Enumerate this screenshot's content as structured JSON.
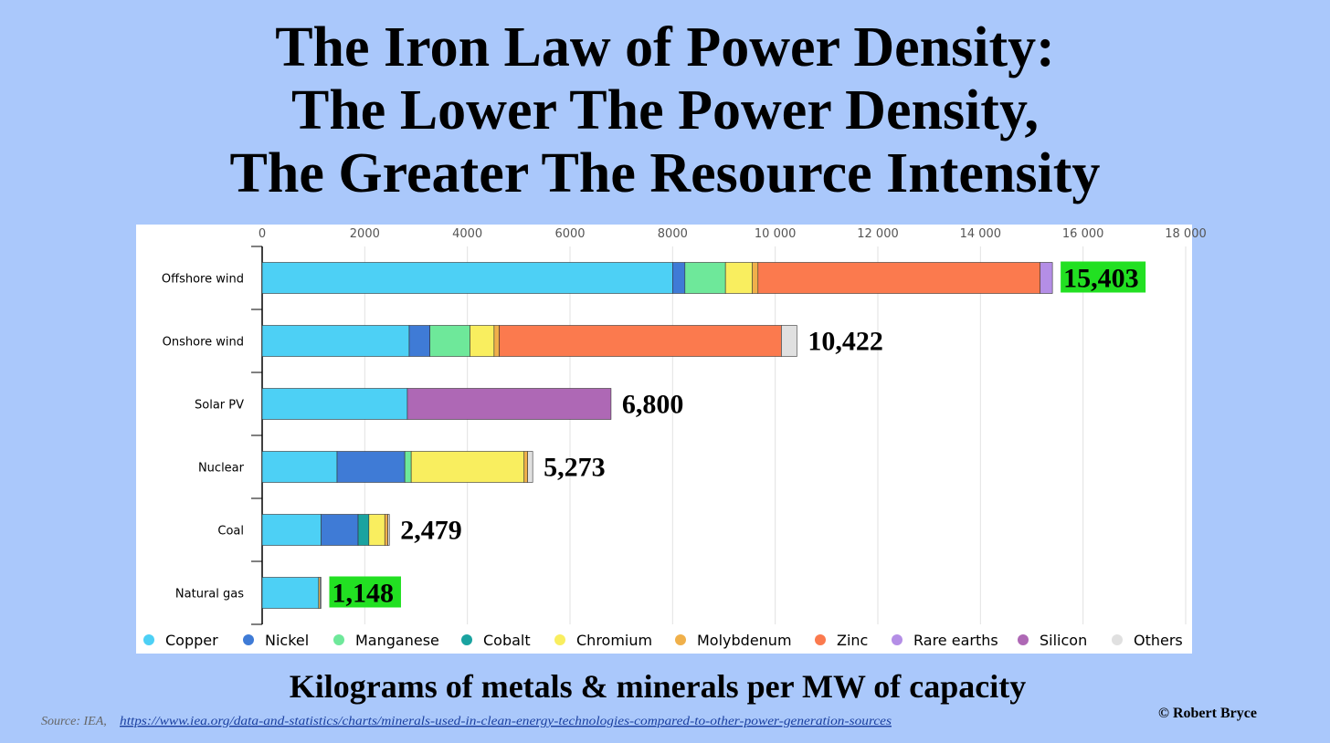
{
  "chart_data": {
    "type": "stacked-bar-horizontal",
    "title": [
      "The Iron Law of Power Density:",
      "The Lower The Power Density,",
      "The Greater The Resource Intensity"
    ],
    "x_label": "Kilograms of metals & minerals per MW of capacity",
    "source": "Source: IEA,",
    "source_link": "https://www.iea.org/data-and-statistics/charts/minerals-used-in-clean-energy-technologies-compared-to-other-power-generation-sources",
    "credit": "© Robert Bryce",
    "categories": [
      "Offshore wind",
      "Onshore wind",
      "Solar PV",
      "Nuclear",
      "Coal",
      "Natural gas"
    ],
    "series": [
      {
        "name": "Copper",
        "color": "#4dd0f5",
        "values": [
          8000,
          2866,
          2830,
          1460,
          1150,
          1100
        ]
      },
      {
        "name": "Nickel",
        "color": "#3f7bd6",
        "values": [
          240,
          404,
          0,
          1320,
          720,
          0
        ]
      },
      {
        "name": "Manganese",
        "color": "#6ee89a",
        "values": [
          790,
          780,
          0,
          125,
          0,
          0
        ]
      },
      {
        "name": "Cobalt",
        "color": "#1aa3a0",
        "values": [
          0,
          0,
          0,
          0,
          210,
          0
        ]
      },
      {
        "name": "Chromium",
        "color": "#f9ee5f",
        "values": [
          525,
          470,
          0,
          2200,
          310,
          0
        ]
      },
      {
        "name": "Molybdenum",
        "color": "#f0b04a",
        "values": [
          109,
          100,
          0,
          70,
          60,
          28
        ]
      },
      {
        "name": "Zinc",
        "color": "#fb7a4e",
        "values": [
          5500,
          5500,
          0,
          0,
          0,
          0
        ]
      },
      {
        "name": "Rare earths",
        "color": "#b48ee6",
        "values": [
          239,
          0,
          0,
          0,
          0,
          0
        ]
      },
      {
        "name": "Silicon",
        "color": "#ae68b5",
        "values": [
          0,
          0,
          3970,
          0,
          0,
          0
        ]
      },
      {
        "name": "Others",
        "color": "#e0e0e0",
        "values": [
          0,
          302,
          0,
          98,
          29,
          20
        ]
      }
    ],
    "totals": [
      15403,
      10422,
      6800,
      5273,
      2479,
      1148
    ],
    "total_labels": [
      "15,403",
      "10,422",
      "6,800",
      "5,273",
      "2,479",
      "1,148"
    ],
    "total_highlighted": [
      true,
      false,
      false,
      false,
      false,
      true
    ],
    "highlight_color": "#22e022",
    "xlim": [
      0,
      18000
    ],
    "xticks": [
      0,
      2000,
      4000,
      6000,
      8000,
      {
        "value": 10000,
        "label": "10 000"
      },
      {
        "value": 12000,
        "label": "12 000"
      },
      {
        "value": 14000,
        "label": "14 000"
      },
      {
        "value": 16000,
        "label": "16 000"
      },
      {
        "value": 18000,
        "label": "18 000"
      }
    ],
    "grid": true,
    "legend": "bottom"
  }
}
